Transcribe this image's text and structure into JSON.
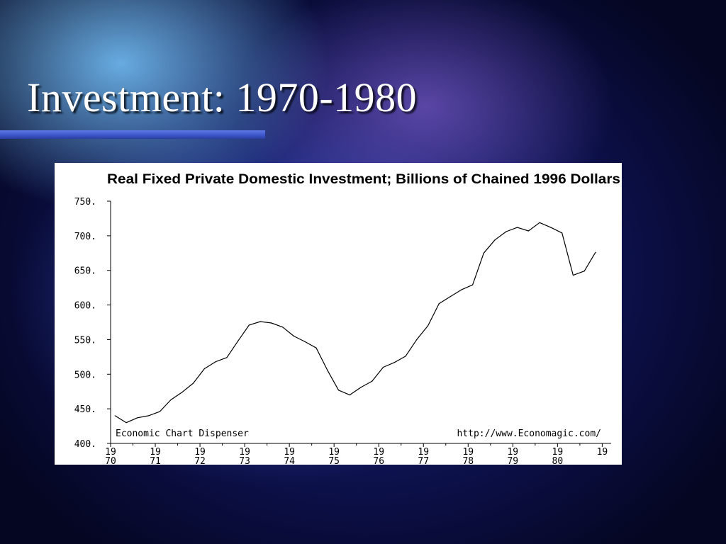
{
  "slide": {
    "title": "Investment: 1970-1980"
  },
  "chart_data": {
    "type": "line",
    "title": "Real Fixed Private Domestic Investment; Billions of Chained 1996 Dollars",
    "footer_left": "Economic Chart Dispenser",
    "footer_right": "http://www.Economagic.com/",
    "ylim": [
      400,
      750
    ],
    "yticks": [
      "750.",
      "700.",
      "650.",
      "600.",
      "550.",
      "500.",
      "450.",
      "400."
    ],
    "ytick_values": [
      750,
      700,
      650,
      600,
      550,
      500,
      450,
      400
    ],
    "xlim": [
      1970,
      1981.2
    ],
    "xticks": [
      {
        "year": 1970,
        "top": "19",
        "bottom": "70"
      },
      {
        "year": 1971,
        "top": "19",
        "bottom": "71"
      },
      {
        "year": 1972,
        "top": "19",
        "bottom": "72"
      },
      {
        "year": 1973,
        "top": "19",
        "bottom": "73"
      },
      {
        "year": 1974,
        "top": "19",
        "bottom": "74"
      },
      {
        "year": 1975,
        "top": "19",
        "bottom": "75"
      },
      {
        "year": 1976,
        "top": "19",
        "bottom": "76"
      },
      {
        "year": 1977,
        "top": "19",
        "bottom": "77"
      },
      {
        "year": 1978,
        "top": "19",
        "bottom": "78"
      },
      {
        "year": 1979,
        "top": "19",
        "bottom": "79"
      },
      {
        "year": 1980,
        "top": "19",
        "bottom": "80"
      },
      {
        "year": 1981,
        "top": "19",
        "bottom": ""
      }
    ],
    "grid": false,
    "series": [
      {
        "x": [
          1970.1,
          1970.35,
          1970.6,
          1970.85,
          1971.1,
          1971.35,
          1971.6,
          1971.85,
          1972.1,
          1972.35,
          1972.6,
          1972.85,
          1973.1,
          1973.35,
          1973.6,
          1973.85,
          1974.1,
          1974.35,
          1974.6,
          1974.85,
          1975.1,
          1975.35,
          1975.6,
          1975.85,
          1976.1,
          1976.35,
          1976.6,
          1976.85,
          1977.1,
          1977.35,
          1977.6,
          1977.85,
          1978.1,
          1978.35,
          1978.6,
          1978.85,
          1979.1,
          1979.35,
          1979.6,
          1979.85,
          1980.1,
          1980.35,
          1980.6,
          1980.85
        ],
        "y": [
          440,
          430,
          437,
          440,
          446,
          463,
          474,
          487,
          508,
          518,
          524,
          548,
          571,
          576,
          574,
          568,
          555,
          547,
          538,
          506,
          477,
          470,
          481,
          490,
          510,
          517,
          526,
          550,
          570,
          602,
          612,
          622,
          629,
          675,
          694,
          706,
          712,
          707,
          719,
          712,
          704,
          643,
          649,
          676
        ]
      }
    ]
  }
}
